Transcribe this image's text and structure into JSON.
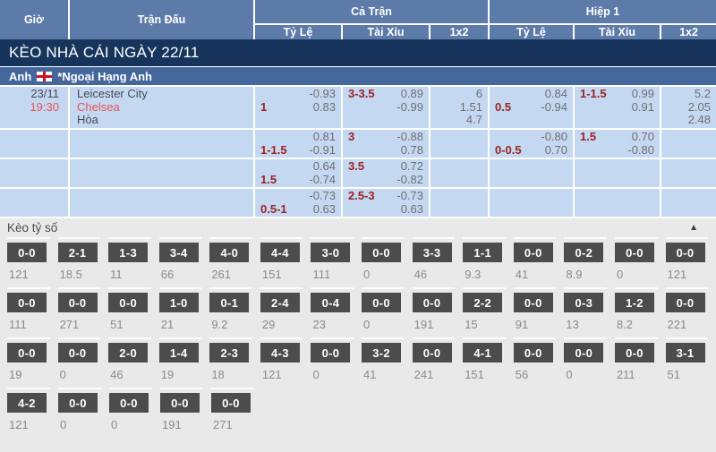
{
  "colors": {
    "header-blue": "#5d7ba8",
    "banner-navy": "#17355c",
    "league-blue": "#45689c",
    "row-blue": "#c5d8f2",
    "handicap-maroon": "#9c2222",
    "accent-red": "#e85454",
    "odds-gray": "#6f6f6f",
    "score-box-gray": "#4c4c4c",
    "section-gray": "#e9e9e9"
  },
  "header": {
    "time": "Giờ",
    "match": "Trận Đấu",
    "full_time": "Cả Trận",
    "first_half": "Hiệp 1",
    "odds": "Tỷ Lệ",
    "over_under": "Tài Xỉu",
    "one_x_two": "1x2"
  },
  "banner": {
    "title": "KÈO NHÀ CÁI NGÀY 22/11"
  },
  "league": {
    "country": "Anh",
    "flag_icon": "england-flag",
    "name": "*Ngoại Hạng Anh"
  },
  "match": {
    "date": "23/11",
    "time": "19:30",
    "home": "Leicester City",
    "away": "Chelsea",
    "draw_label": "Hòa",
    "odds_rows": [
      {
        "ft_tl": [
          [
            "",
            "-0.93"
          ],
          [
            "1",
            "0.83"
          ]
        ],
        "ft_tx": [
          [
            "3-3.5",
            "0.89"
          ],
          [
            "",
            "-0.99"
          ]
        ],
        "ft_x12": [
          [
            "",
            "6"
          ],
          [
            "",
            "1.51"
          ],
          [
            "",
            "4.7"
          ]
        ],
        "h1_tl": [
          [
            "",
            "0.84"
          ],
          [
            "0.5",
            "-0.94"
          ]
        ],
        "h1_tx": [
          [
            "1-1.5",
            "0.99"
          ],
          [
            "",
            "0.91"
          ]
        ],
        "h1_x12": [
          [
            "",
            "5.2"
          ],
          [
            "",
            "2.05"
          ],
          [
            "",
            "2.48"
          ]
        ]
      },
      {
        "ft_tl": [
          [
            "",
            "0.81"
          ],
          [
            "1-1.5",
            "-0.91"
          ]
        ],
        "ft_tx": [
          [
            "3",
            "-0.88"
          ],
          [
            "",
            "0.78"
          ]
        ],
        "ft_x12": [],
        "h1_tl": [
          [
            "",
            "-0.80"
          ],
          [
            "0-0.5",
            "0.70"
          ]
        ],
        "h1_tx": [
          [
            "1.5",
            "0.70"
          ],
          [
            "",
            "-0.80"
          ]
        ],
        "h1_x12": []
      },
      {
        "ft_tl": [
          [
            "",
            "0.64"
          ],
          [
            "1.5",
            "-0.74"
          ]
        ],
        "ft_tx": [
          [
            "3.5",
            "0.72"
          ],
          [
            "",
            "-0.82"
          ]
        ],
        "ft_x12": [],
        "h1_tl": [],
        "h1_tx": [],
        "h1_x12": []
      },
      {
        "ft_tl": [
          [
            "",
            "-0.73"
          ],
          [
            "0.5-1",
            "0.63"
          ]
        ],
        "ft_tx": [
          [
            "2.5-3",
            "-0.73"
          ],
          [
            "",
            "0.63"
          ]
        ],
        "ft_x12": [],
        "h1_tl": [],
        "h1_tx": [],
        "h1_x12": []
      }
    ]
  },
  "score_section": {
    "title": "Kèo tỷ số",
    "collapse_icon": "▲",
    "rows": [
      [
        [
          "0-0",
          "121"
        ],
        [
          "2-1",
          "18.5"
        ],
        [
          "1-3",
          "11"
        ],
        [
          "3-4",
          "66"
        ],
        [
          "4-0",
          "261"
        ],
        [
          "4-4",
          "151"
        ],
        [
          "3-0",
          "111"
        ],
        [
          "0-0",
          "0"
        ],
        [
          "3-3",
          "46"
        ],
        [
          "1-1",
          "9.3"
        ],
        [
          "0-0",
          "41"
        ],
        [
          "0-2",
          "8.9"
        ],
        [
          "0-0",
          "0"
        ],
        [
          "0-0",
          "121"
        ]
      ],
      [
        [
          "0-0",
          "111"
        ],
        [
          "0-0",
          "271"
        ],
        [
          "0-0",
          "51"
        ],
        [
          "1-0",
          "21"
        ],
        [
          "0-1",
          "9.2"
        ],
        [
          "2-4",
          "29"
        ],
        [
          "0-4",
          "23"
        ],
        [
          "0-0",
          "0"
        ],
        [
          "0-0",
          "191"
        ],
        [
          "2-2",
          "15"
        ],
        [
          "0-0",
          "91"
        ],
        [
          "0-3",
          "13"
        ],
        [
          "1-2",
          "8.2"
        ],
        [
          "0-0",
          "221"
        ]
      ],
      [
        [
          "0-0",
          "19"
        ],
        [
          "0-0",
          "0"
        ],
        [
          "2-0",
          "46"
        ],
        [
          "1-4",
          "19"
        ],
        [
          "2-3",
          "18"
        ],
        [
          "4-3",
          "121"
        ],
        [
          "0-0",
          "0"
        ],
        [
          "3-2",
          "41"
        ],
        [
          "0-0",
          "241"
        ],
        [
          "4-1",
          "151"
        ],
        [
          "0-0",
          "56"
        ],
        [
          "0-0",
          "0"
        ],
        [
          "0-0",
          "211"
        ],
        [
          "3-1",
          "51"
        ]
      ],
      [
        [
          "4-2",
          "121"
        ],
        [
          "0-0",
          "0"
        ],
        [
          "0-0",
          "0"
        ],
        [
          "0-0",
          "191"
        ],
        [
          "0-0",
          "271"
        ]
      ]
    ]
  }
}
